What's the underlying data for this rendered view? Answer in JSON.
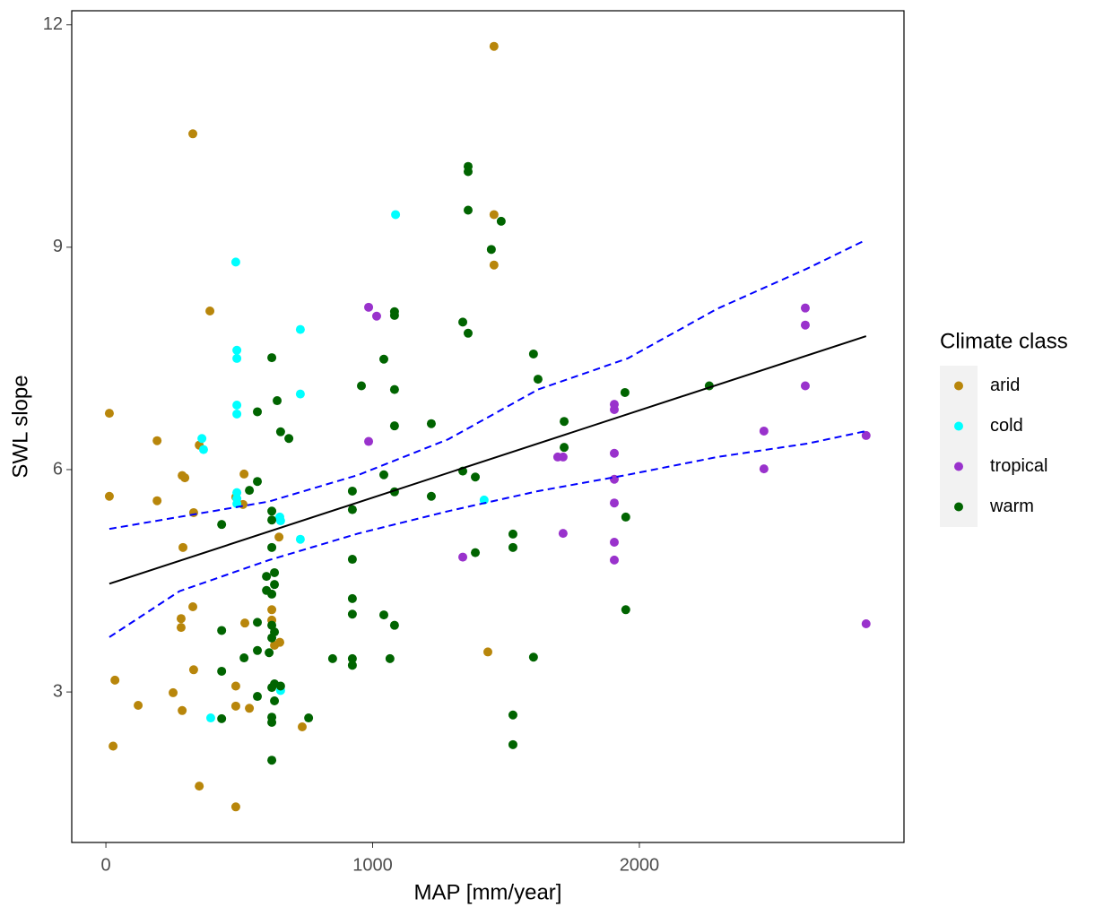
{
  "chart_data": {
    "type": "scatter",
    "x_label": "MAP [mm/year]",
    "y_label": "SWL slope",
    "legend_title": "Climate class",
    "legend_position": "right",
    "xlim": [
      -128,
      2992
    ],
    "ylim": [
      0.97,
      12.19
    ],
    "xticks": [
      0,
      1000,
      2000
    ],
    "yticks": [
      3,
      6,
      9,
      12
    ],
    "grid": false,
    "series": [
      {
        "name": "arid",
        "color": "#B8860B",
        "x": [
          13,
          13,
          27,
          34,
          121,
          192,
          192,
          252,
          286,
          296,
          289,
          282,
          282,
          286,
          326,
          329,
          326,
          329,
          350,
          350,
          390,
          487,
          487,
          487,
          487,
          518,
          514,
          521,
          538,
          622,
          622,
          632,
          649,
          652,
          736,
          1455,
          1455,
          1455,
          1432
        ],
        "values": [
          6.76,
          5.64,
          2.27,
          3.16,
          2.82,
          6.39,
          5.58,
          2.99,
          5.92,
          5.89,
          4.95,
          3.99,
          3.87,
          2.75,
          10.53,
          5.42,
          4.15,
          3.3,
          6.33,
          1.73,
          8.14,
          5.63,
          3.08,
          2.81,
          1.45,
          5.94,
          5.53,
          3.93,
          2.78,
          4.11,
          3.97,
          3.63,
          5.09,
          3.67,
          2.53,
          11.71,
          9.44,
          8.76,
          3.54
        ]
      },
      {
        "name": "cold",
        "color": "#00FFFF",
        "x": [
          360,
          366,
          393,
          487,
          491,
          491,
          491,
          491,
          491,
          491,
          491,
          652,
          655,
          655,
          729,
          729,
          729,
          1086,
          1418
        ],
        "values": [
          6.42,
          6.27,
          2.65,
          8.8,
          7.61,
          7.5,
          6.87,
          6.75,
          5.69,
          5.61,
          5.54,
          5.36,
          5.31,
          3.02,
          7.89,
          7.02,
          5.06,
          9.44,
          5.59
        ]
      },
      {
        "name": "tropical",
        "color": "#9932CC",
        "x": [
          985,
          1015,
          985,
          1338,
          1694,
          1714,
          1714,
          1906,
          1906,
          1906,
          1906,
          1906,
          1906,
          1906,
          2467,
          2467,
          2622,
          2622,
          2622,
          2850,
          2850
        ],
        "values": [
          8.19,
          8.07,
          6.38,
          4.82,
          6.17,
          6.17,
          5.14,
          6.88,
          6.81,
          6.22,
          5.87,
          5.55,
          5.02,
          4.78,
          6.52,
          6.01,
          8.18,
          7.95,
          7.13,
          6.46,
          3.92
        ]
      },
      {
        "name": "warm",
        "color": "#006400",
        "x": [
          434,
          434,
          434,
          434,
          518,
          538,
          568,
          568,
          568,
          568,
          568,
          602,
          602,
          612,
          622,
          622,
          622,
          622,
          622,
          622,
          622,
          622,
          622,
          622,
          622,
          632,
          632,
          632,
          632,
          632,
          642,
          655,
          686,
          655,
          760,
          850,
          924,
          924,
          924,
          924,
          924,
          924,
          924,
          958,
          1042,
          1042,
          1042,
          1065,
          1082,
          1082,
          1082,
          1082,
          1082,
          1082,
          1220,
          1220,
          1338,
          1338,
          1358,
          1358,
          1358,
          1358,
          1385,
          1385,
          1445,
          1482,
          1526,
          1526,
          1526,
          1526,
          1603,
          1620,
          1603,
          1718,
          1718,
          1946,
          1949,
          1949,
          2262
        ],
        "values": [
          5.26,
          3.83,
          3.28,
          2.64,
          3.46,
          5.72,
          5.84,
          3.94,
          3.56,
          2.94,
          6.78,
          4.56,
          4.37,
          3.53,
          7.51,
          5.44,
          5.32,
          4.95,
          4.32,
          3.9,
          3.73,
          3.06,
          2.66,
          2.59,
          2.08,
          4.61,
          4.45,
          3.81,
          2.88,
          3.11,
          6.93,
          6.51,
          6.42,
          3.08,
          2.65,
          3.45,
          5.71,
          5.46,
          4.79,
          4.26,
          4.05,
          3.45,
          3.36,
          7.13,
          7.49,
          5.93,
          4.04,
          3.45,
          8.13,
          8.08,
          7.08,
          6.59,
          5.7,
          3.9,
          6.62,
          5.64,
          7.99,
          5.98,
          10.09,
          10.02,
          9.5,
          7.84,
          5.9,
          4.88,
          8.97,
          9.35,
          5.13,
          4.95,
          2.69,
          2.29,
          7.56,
          7.22,
          3.47,
          6.65,
          6.3,
          7.04,
          5.36,
          4.11,
          7.13
        ]
      }
    ],
    "lines": [
      {
        "color": "#000000",
        "dashed": false,
        "x": [
          13,
          2850
        ],
        "values": [
          4.46,
          7.8
        ]
      },
      {
        "color": "#0000FF",
        "dashed": true,
        "x": [
          13,
          612,
          948,
          1284,
          1620,
          1956,
          2292,
          2628,
          2850
        ],
        "values": [
          5.2,
          5.57,
          5.93,
          6.41,
          7.08,
          7.5,
          8.17,
          8.71,
          9.1
        ]
      },
      {
        "color": "#0000FF",
        "dashed": true,
        "x": [
          13,
          276,
          612,
          948,
          1284,
          1620,
          1956,
          2292,
          2628,
          2850
        ],
        "values": [
          3.74,
          4.36,
          4.78,
          5.14,
          5.44,
          5.71,
          5.93,
          6.17,
          6.35,
          6.52
        ]
      }
    ]
  }
}
